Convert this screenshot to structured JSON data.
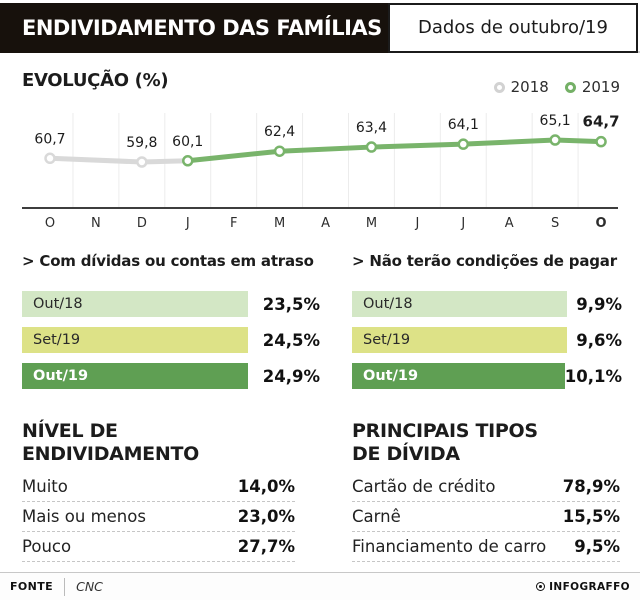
{
  "header": {
    "title": "ENDIVIDAMENTO DAS FAMÍLIAS",
    "badge": "Dados de outubro/19"
  },
  "chart": {
    "title": "EVOLUÇÃO (%)",
    "legend": [
      {
        "label": "2018",
        "color": "#d2d2d2"
      },
      {
        "label": "2019",
        "color": "#74b066"
      }
    ]
  },
  "chart_data": {
    "type": "line",
    "title": "EVOLUÇÃO (%)",
    "x_labels": [
      "O",
      "N",
      "D",
      "J",
      "F",
      "M",
      "A",
      "M",
      "J",
      "J",
      "A",
      "S",
      "O"
    ],
    "ylim": [
      58,
      67
    ],
    "grid": "vertical-light",
    "legend_position": "top-right",
    "series": [
      {
        "name": "2018",
        "color": "#d9d9d9",
        "points": [
          {
            "month_index": 0,
            "value": 60.7,
            "label": "60,7"
          },
          {
            "month_index": 2,
            "value": 59.8,
            "label": "59,8"
          },
          {
            "month_index": 3,
            "value": 60.1,
            "label": null,
            "no_marker": true
          }
        ]
      },
      {
        "name": "2019",
        "color": "#79b46b",
        "points": [
          {
            "month_index": 3,
            "value": 60.1,
            "label": "60,1"
          },
          {
            "month_index": 5,
            "value": 62.4,
            "label": "62,4"
          },
          {
            "month_index": 7,
            "value": 63.4,
            "label": "63,4"
          },
          {
            "month_index": 9,
            "value": 64.1,
            "label": "64,1"
          },
          {
            "month_index": 11,
            "value": 65.1,
            "label": "65,1"
          },
          {
            "month_index": 12,
            "value": 64.7,
            "label": "64,7",
            "bold": true
          }
        ]
      }
    ]
  },
  "sections": [
    {
      "title": "> Com dívidas ou contas em atraso",
      "bars": [
        {
          "label": "Out/18",
          "value": "23,5%",
          "color": "#d3e7c5",
          "text_color": "#2a2a2a"
        },
        {
          "label": "Set/19",
          "value": "24,5%",
          "color": "#dde287",
          "text_color": "#2a2a2a"
        },
        {
          "label": "Out/19",
          "value": "24,9%",
          "color": "#5f9f53",
          "text_color": "#ffffff"
        }
      ]
    },
    {
      "title": "> Não terão condições de pagar",
      "bars": [
        {
          "label": "Out/18",
          "value": "9,9%",
          "color": "#d3e7c5",
          "text_color": "#2a2a2a"
        },
        {
          "label": "Set/19",
          "value": "9,6%",
          "color": "#dde287",
          "text_color": "#2a2a2a"
        },
        {
          "label": "Out/19",
          "value": "10,1%",
          "color": "#5f9f53",
          "text_color": "#ffffff"
        }
      ]
    }
  ],
  "lists": [
    {
      "title_lines": [
        "NÍVEL DE",
        "ENDIVIDAMENTO"
      ],
      "rows": [
        {
          "label": "Muito",
          "value": "14,0%"
        },
        {
          "label": "Mais ou menos",
          "value": "23,0%"
        },
        {
          "label": "Pouco",
          "value": "27,7%"
        }
      ]
    },
    {
      "title_lines": [
        "PRINCIPAIS TIPOS",
        "DE DÍVIDA"
      ],
      "rows": [
        {
          "label": "Cartão de crédito",
          "value": "78,9%"
        },
        {
          "label": "Carnê",
          "value": "15,5%"
        },
        {
          "label": "Financiamento de carro",
          "value": "9,5%"
        }
      ]
    }
  ],
  "footer": {
    "source_label": "FONTE",
    "source_value": "CNC",
    "credit": "INFOGRAFFO"
  }
}
